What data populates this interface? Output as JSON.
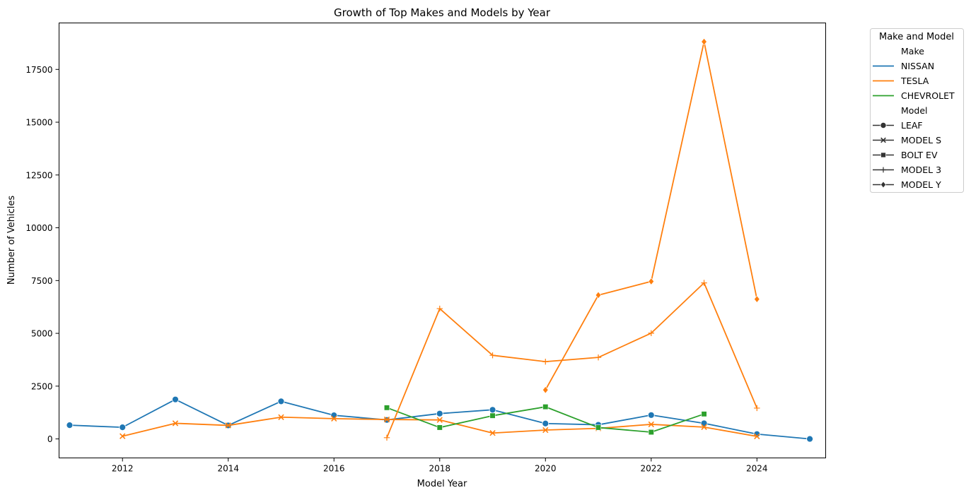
{
  "chart_data": {
    "type": "line",
    "title": "Growth of Top Makes and Models by Year",
    "xlabel": "Model Year",
    "ylabel": "Number of Vehicles",
    "xlim": [
      2010.8,
      2025.3
    ],
    "ylim": [
      -900,
      19700
    ],
    "xticks": [
      2012,
      2014,
      2016,
      2018,
      2020,
      2022,
      2024
    ],
    "yticks": [
      0,
      2500,
      5000,
      7500,
      10000,
      12500,
      15000,
      17500
    ],
    "grid": false,
    "legend": {
      "title": "Make and Model",
      "placement": "outside-top-right",
      "make_header": "Make",
      "model_header": "Model",
      "makes": [
        {
          "name": "NISSAN",
          "color": "#1f77b4"
        },
        {
          "name": "TESLA",
          "color": "#ff7f0e"
        },
        {
          "name": "CHEVROLET",
          "color": "#2ca02c"
        }
      ],
      "models": [
        {
          "name": "LEAF",
          "marker": "circle"
        },
        {
          "name": "MODEL S",
          "marker": "x"
        },
        {
          "name": "BOLT EV",
          "marker": "square"
        },
        {
          "name": "MODEL 3",
          "marker": "plus"
        },
        {
          "name": "MODEL Y",
          "marker": "diamond"
        }
      ]
    },
    "series": [
      {
        "make": "NISSAN",
        "model": "LEAF",
        "color": "#1f77b4",
        "marker": "circle",
        "x": [
          2011,
          2012,
          2013,
          2014,
          2015,
          2016,
          2017,
          2018,
          2019,
          2020,
          2021,
          2022,
          2023,
          2024,
          2025
        ],
        "y": [
          650,
          550,
          1870,
          640,
          1780,
          1120,
          900,
          1200,
          1380,
          730,
          670,
          1130,
          740,
          230,
          0
        ]
      },
      {
        "make": "TESLA",
        "model": "MODEL S",
        "color": "#ff7f0e",
        "marker": "x",
        "x": [
          2012,
          2013,
          2014,
          2015,
          2016,
          2017,
          2018,
          2019,
          2020,
          2021,
          2022,
          2023,
          2024
        ],
        "y": [
          130,
          740,
          640,
          1030,
          960,
          920,
          900,
          280,
          420,
          500,
          690,
          560,
          120
        ]
      },
      {
        "make": "CHEVROLET",
        "model": "BOLT EV",
        "color": "#2ca02c",
        "marker": "square",
        "x": [
          2017,
          2018,
          2019,
          2020,
          2021,
          2022,
          2023
        ],
        "y": [
          1480,
          540,
          1100,
          1520,
          540,
          320,
          1180
        ]
      },
      {
        "make": "TESLA",
        "model": "MODEL 3",
        "color": "#ff7f0e",
        "marker": "plus",
        "x": [
          2017,
          2018,
          2019,
          2020,
          2021,
          2022,
          2023,
          2024
        ],
        "y": [
          60,
          6170,
          3960,
          3660,
          3860,
          5010,
          7390,
          1460
        ]
      },
      {
        "make": "TESLA",
        "model": "MODEL Y",
        "color": "#ff7f0e",
        "marker": "diamond",
        "x": [
          2020,
          2021,
          2022,
          2023,
          2024
        ],
        "y": [
          2320,
          6810,
          7460,
          18810,
          6620
        ]
      }
    ]
  }
}
